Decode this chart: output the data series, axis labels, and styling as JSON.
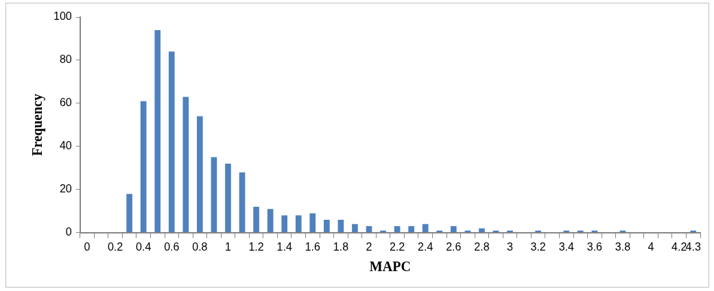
{
  "chart_data": {
    "type": "bar",
    "xlabel": "MAPC",
    "ylabel": "Frequency",
    "categories": [
      "0",
      null,
      "0.2",
      null,
      "0.4",
      null,
      "0.6",
      null,
      "0.8",
      null,
      "1",
      null,
      "1.2",
      null,
      "1.4",
      null,
      "1.6",
      null,
      "1.8",
      null,
      "2",
      null,
      "2.2",
      null,
      "2.4",
      null,
      "2.6",
      null,
      "2.8",
      null,
      "3",
      null,
      "3.2",
      null,
      "3.4",
      null,
      "3.6",
      null,
      "3.8",
      null,
      "4",
      null,
      "4.2",
      "4.3"
    ],
    "values": [
      0,
      0,
      0,
      18,
      61,
      94,
      84,
      63,
      54,
      35,
      32,
      28,
      12,
      11,
      8,
      8,
      9,
      6,
      6,
      4,
      3,
      1,
      3,
      3,
      4,
      1,
      3,
      1,
      2,
      1,
      1,
      0,
      1,
      0,
      1,
      1,
      1,
      0,
      1,
      0,
      0,
      0,
      0,
      1
    ],
    "color": "#4f81bd",
    "ylim": [
      0,
      100
    ],
    "yticks": [
      0,
      20,
      40,
      60,
      80,
      100
    ],
    "grid": false,
    "legend": false
  }
}
